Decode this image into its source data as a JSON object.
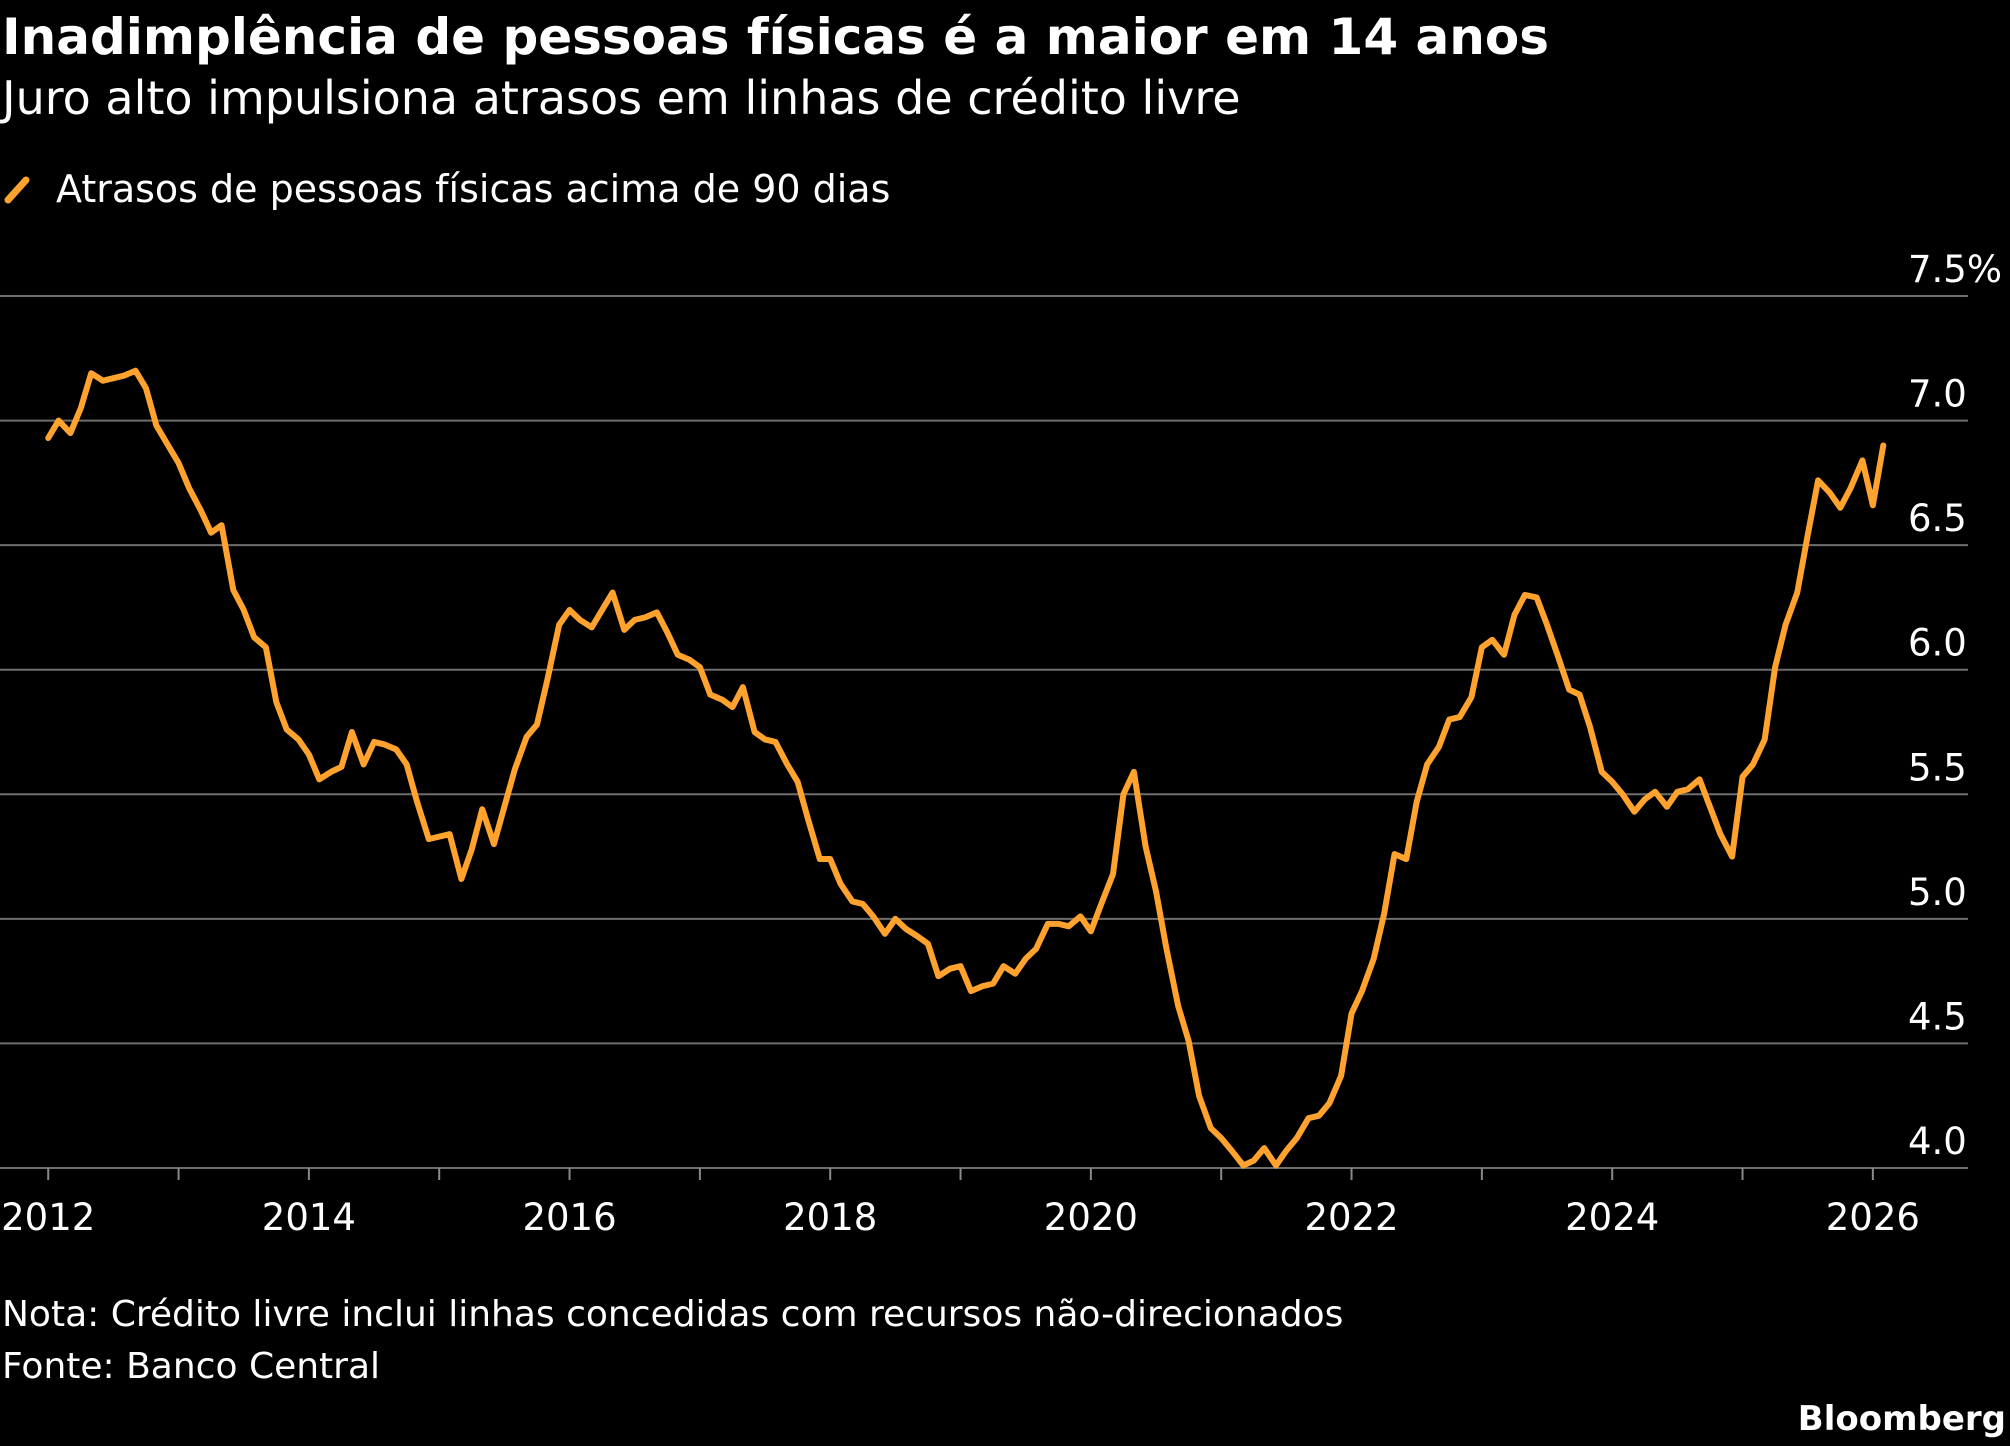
{
  "chart_data": {
    "type": "line",
    "title": "Inadimplência de pessoas físicas é a maior em 14 anos",
    "subtitle": "Juro alto impulsiona atrasos em linhas de crédito livre",
    "note": "Nota: Crédito livre inclui linhas concedidas com recursos não-direcionados",
    "source": "Fonte: Banco Central",
    "brand": "Bloomberg",
    "x": [
      2012,
      2012.08,
      2012.17,
      2012.25,
      2012.33,
      2012.42,
      2012.5,
      2012.58,
      2012.67,
      2012.75,
      2012.83,
      2012.92,
      2013,
      2013.08,
      2013.17,
      2013.25,
      2013.33,
      2013.42,
      2013.5,
      2013.58,
      2013.67,
      2013.75,
      2013.83,
      2013.92,
      2014,
      2014.08,
      2014.17,
      2014.25,
      2014.33,
      2014.42,
      2014.5,
      2014.58,
      2014.67,
      2014.75,
      2014.83,
      2014.92,
      2015,
      2015.08,
      2015.17,
      2015.25,
      2015.33,
      2015.42,
      2015.5,
      2015.58,
      2015.67,
      2015.75,
      2015.83,
      2015.92,
      2016,
      2016.08,
      2016.17,
      2016.25,
      2016.33,
      2016.42,
      2016.5,
      2016.58,
      2016.67,
      2016.75,
      2016.83,
      2016.92,
      2017,
      2017.08,
      2017.17,
      2017.25,
      2017.33,
      2017.42,
      2017.5,
      2017.58,
      2017.67,
      2017.75,
      2017.83,
      2017.92,
      2018,
      2018.08,
      2018.17,
      2018.25,
      2018.33,
      2018.42,
      2018.5,
      2018.58,
      2018.67,
      2018.75,
      2018.83,
      2018.92,
      2019,
      2019.08,
      2019.17,
      2019.25,
      2019.33,
      2019.42,
      2019.5,
      2019.58,
      2019.67,
      2019.75,
      2019.83,
      2019.92,
      2020,
      2020.08,
      2020.17,
      2020.25,
      2020.33,
      2020.42,
      2020.5,
      2020.58,
      2020.67,
      2020.75,
      2020.83,
      2020.92,
      2021,
      2021.08,
      2021.17,
      2021.25,
      2021.33,
      2021.42,
      2021.5,
      2021.58,
      2021.67,
      2021.75,
      2021.83,
      2021.92,
      2022,
      2022.08,
      2022.17,
      2022.25,
      2022.33,
      2022.42,
      2022.5,
      2022.58,
      2022.67,
      2022.75,
      2022.83,
      2022.92,
      2023,
      2023.08,
      2023.17,
      2023.25,
      2023.33,
      2023.42,
      2023.5,
      2023.58,
      2023.67,
      2023.75,
      2023.83,
      2023.92,
      2024,
      2024.08,
      2024.17,
      2024.25,
      2024.33,
      2024.42,
      2024.5,
      2024.58,
      2024.67,
      2024.75,
      2024.83,
      2024.92,
      2025,
      2025.08,
      2025.17,
      2025.25,
      2025.33,
      2025.42,
      2025.5,
      2025.58,
      2025.67,
      2025.75,
      2025.83,
      2025.92,
      2026,
      2026.08
    ],
    "series": [
      {
        "name": "Atrasos de pessoas físicas acima de 90 dias",
        "color": "#ffa22e",
        "values": [
          6.93,
          7.0,
          6.95,
          7.05,
          7.19,
          7.16,
          7.17,
          7.18,
          7.2,
          7.13,
          6.98,
          6.9,
          6.83,
          6.73,
          6.64,
          6.55,
          6.58,
          6.32,
          6.24,
          6.13,
          6.09,
          5.87,
          5.76,
          5.72,
          5.66,
          5.56,
          5.59,
          5.61,
          5.75,
          5.62,
          5.71,
          5.7,
          5.68,
          5.62,
          5.47,
          5.32,
          5.33,
          5.34,
          5.16,
          5.28,
          5.44,
          5.3,
          5.45,
          5.6,
          5.73,
          5.78,
          5.96,
          6.18,
          6.24,
          6.2,
          6.17,
          6.24,
          6.31,
          6.16,
          6.2,
          6.21,
          6.23,
          6.15,
          6.06,
          6.04,
          6.01,
          5.9,
          5.88,
          5.85,
          5.93,
          5.75,
          5.72,
          5.71,
          5.62,
          5.55,
          5.4,
          5.24,
          5.24,
          5.14,
          5.07,
          5.06,
          5.01,
          4.94,
          5.0,
          4.96,
          4.93,
          4.9,
          4.77,
          4.8,
          4.81,
          4.71,
          4.73,
          4.74,
          4.81,
          4.78,
          4.84,
          4.88,
          4.98,
          4.98,
          4.97,
          5.01,
          4.95,
          5.06,
          5.18,
          5.5,
          5.59,
          5.29,
          5.11,
          4.88,
          4.65,
          4.51,
          4.29,
          4.16,
          4.12,
          4.07,
          4.01,
          4.03,
          4.08,
          4.01,
          4.07,
          4.12,
          4.2,
          4.21,
          4.26,
          4.37,
          4.62,
          4.71,
          4.84,
          5.02,
          5.26,
          5.24,
          5.47,
          5.62,
          5.69,
          5.8,
          5.81,
          5.89,
          6.09,
          6.12,
          6.06,
          6.22,
          6.3,
          6.29,
          6.18,
          6.06,
          5.92,
          5.9,
          5.77,
          5.59,
          5.55,
          5.5,
          5.43,
          5.48,
          5.51,
          5.45,
          5.51,
          5.52,
          5.56,
          5.45,
          5.34,
          5.25,
          5.57,
          5.62,
          5.72,
          6.01,
          6.18,
          6.31,
          6.54,
          6.76,
          6.71,
          6.65,
          6.73,
          6.84,
          6.66,
          6.9
        ]
      }
    ],
    "xlim": [
      2011.63,
      2026.73
    ],
    "xticks": [
      2012,
      2014,
      2016,
      2018,
      2020,
      2022,
      2024,
      2026
    ],
    "xminorticks": [
      2013,
      2015,
      2017,
      2019,
      2021,
      2023,
      2025
    ],
    "ylim": [
      4.0,
      7.5
    ],
    "yticks": [
      {
        "value": 4.0,
        "label": "4.0"
      },
      4.5,
      {
        "value": 5.0,
        "label": "5.0"
      },
      5.5,
      {
        "value": 6.0,
        "label": "6.0"
      },
      6.5,
      {
        "value": 7.0,
        "label": "7.0"
      },
      {
        "value": 7.5,
        "label": "7.5%"
      }
    ],
    "grid": true
  }
}
